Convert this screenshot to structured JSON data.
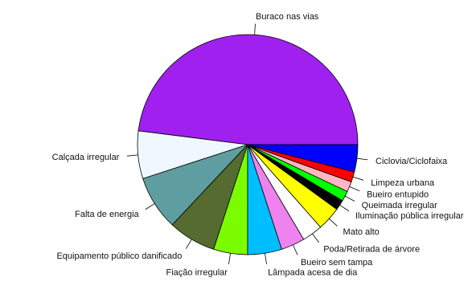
{
  "chart_data": {
    "type": "pie",
    "title": "",
    "start_angle_deg": 0,
    "direction": "counterclockwise",
    "slices": [
      {
        "label": "Buraco nas vias",
        "value": 48.0,
        "color": "#a020f0"
      },
      {
        "label": "Calçada irregular",
        "value": 7.0,
        "color": "#f0f8ff"
      },
      {
        "label": "Falta de energia",
        "value": 8.0,
        "color": "#5f9ea0"
      },
      {
        "label": "Equipamento público danificado",
        "value": 7.0,
        "color": "#556b2f"
      },
      {
        "label": "Fiação irregular",
        "value": 5.0,
        "color": "#7cfc00"
      },
      {
        "label": "Lâmpada acesa de dia",
        "value": 5.0,
        "color": "#00bfff"
      },
      {
        "label": "Bueiro sem tampa",
        "value": 3.5,
        "color": "#ee82ee"
      },
      {
        "label": "Poda/Retirada de árvore",
        "value": 3.0,
        "color": "#ffffff"
      },
      {
        "label": "Mato alto",
        "value": 3.5,
        "color": "#ffff00"
      },
      {
        "label": "Iluminação pública irregular",
        "value": 1.5,
        "color": "#000000"
      },
      {
        "label": "Queimada irregular",
        "value": 1.5,
        "color": "#00ff00"
      },
      {
        "label": "Bueiro entupido",
        "value": 1.5,
        "color": "#ffb6c1"
      },
      {
        "label": "Limpeza urbana",
        "value": 1.5,
        "color": "#ff0000"
      },
      {
        "label": "Ciclovia/Ciclofaixa",
        "value": 4.0,
        "color": "#0000ff"
      }
    ]
  }
}
